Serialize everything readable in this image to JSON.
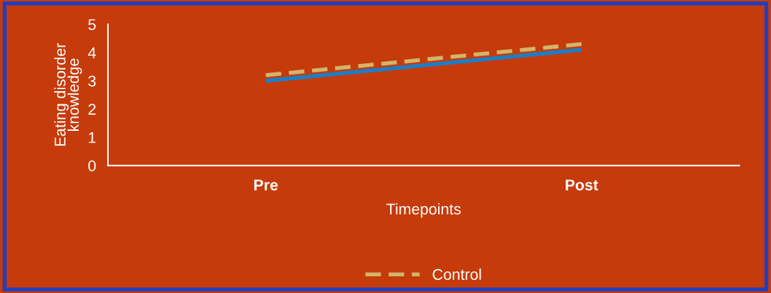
{
  "chart_data": {
    "type": "line",
    "xlabel": "Timepoints",
    "ylabel": "Eating disorder\nknowledge",
    "categories": [
      "Pre",
      "Post"
    ],
    "series": [
      {
        "name": "Control",
        "color": "#d4b46a",
        "values": [
          3.2,
          4.3
        ],
        "line_style": "dashed"
      },
      {
        "color": "#1a7fc8",
        "values": [
          3.0,
          4.1
        ],
        "line_style": "solid"
      }
    ],
    "ylim": [
      0,
      5
    ],
    "yticks": [
      0,
      1,
      2,
      3,
      4,
      5
    ],
    "grid": false,
    "legend": "bottom",
    "marker": "none"
  }
}
